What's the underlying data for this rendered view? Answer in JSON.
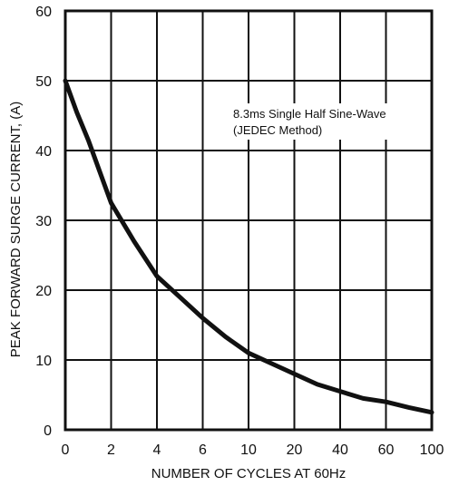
{
  "chart_data": {
    "type": "line",
    "xlabel": "NUMBER OF CYCLES AT 60Hz",
    "ylabel": "PEAK FORWARD SURGE CURRENT, (A)",
    "x_ticks": [
      "0",
      "2",
      "4",
      "6",
      "10",
      "20",
      "40",
      "60",
      "100"
    ],
    "y_ticks": [
      "0",
      "10",
      "20",
      "30",
      "40",
      "50",
      "60"
    ],
    "ylim": [
      0,
      60
    ],
    "grid": true,
    "annotation": [
      "8.3ms Single Half Sine-Wave",
      "(JEDEC Method)"
    ],
    "series": [
      {
        "x": [
          0,
          0.5,
          1,
          1.5,
          2,
          3,
          4,
          5,
          6,
          8,
          10,
          15,
          20,
          30,
          40,
          50,
          60,
          80,
          100
        ],
        "values": [
          50,
          45.5,
          41.5,
          37,
          32.5,
          27,
          22,
          19,
          16,
          13.3,
          11,
          9.5,
          8,
          6.5,
          5.5,
          4.5,
          4,
          3.2,
          2.5
        ]
      }
    ],
    "colors": {
      "line": "#111111",
      "grid": "#111111"
    }
  }
}
